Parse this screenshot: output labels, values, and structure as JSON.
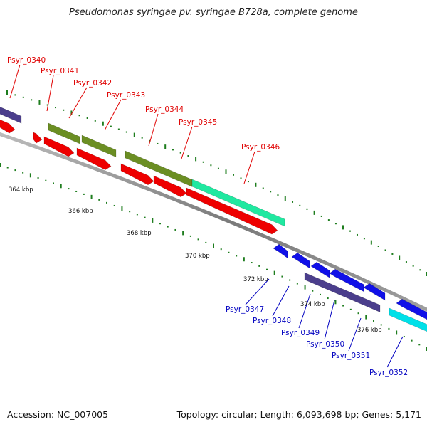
{
  "header": {
    "title": "Pseudomonas syringae pv. syringae B728a, complete genome"
  },
  "footer": {
    "accession": "Accession: NC_007005",
    "topology": "Topology: circular; Length: 6,093,698 bp; Genes: 5,171"
  },
  "map": {
    "colors": {
      "backbone": "#8a8a8a",
      "tick": "#1e7d1e",
      "label_forward": "#e00000",
      "label_reverse": "#0000c0"
    },
    "position_labels": [
      "364 kbp",
      "366 kbp",
      "368 kbp",
      "370 kbp",
      "372 kbp",
      "374 kbp",
      "376 kbp"
    ],
    "forward_genes": [
      {
        "label": "Psyr_0340"
      },
      {
        "label": "Psyr_0341"
      },
      {
        "label": "Psyr_0342"
      },
      {
        "label": "Psyr_0343"
      },
      {
        "label": "Psyr_0344"
      },
      {
        "label": "Psyr_0345"
      },
      {
        "label": "Psyr_0346"
      }
    ],
    "reverse_genes": [
      {
        "label": "Psyr_0347"
      },
      {
        "label": "Psyr_0348"
      },
      {
        "label": "Psyr_0349"
      },
      {
        "label": "Psyr_0350"
      },
      {
        "label": "Psyr_0351"
      },
      {
        "label": "Psyr_0352"
      }
    ],
    "track_colors": {
      "cds": "#ee0000",
      "cds_reverse": "#1010e8",
      "cog_olive": "#6b8e23",
      "cog_purple": "#4b3e8c",
      "cog_teal": "#20e8a0",
      "cog_cyan": "#00e0e8"
    }
  }
}
